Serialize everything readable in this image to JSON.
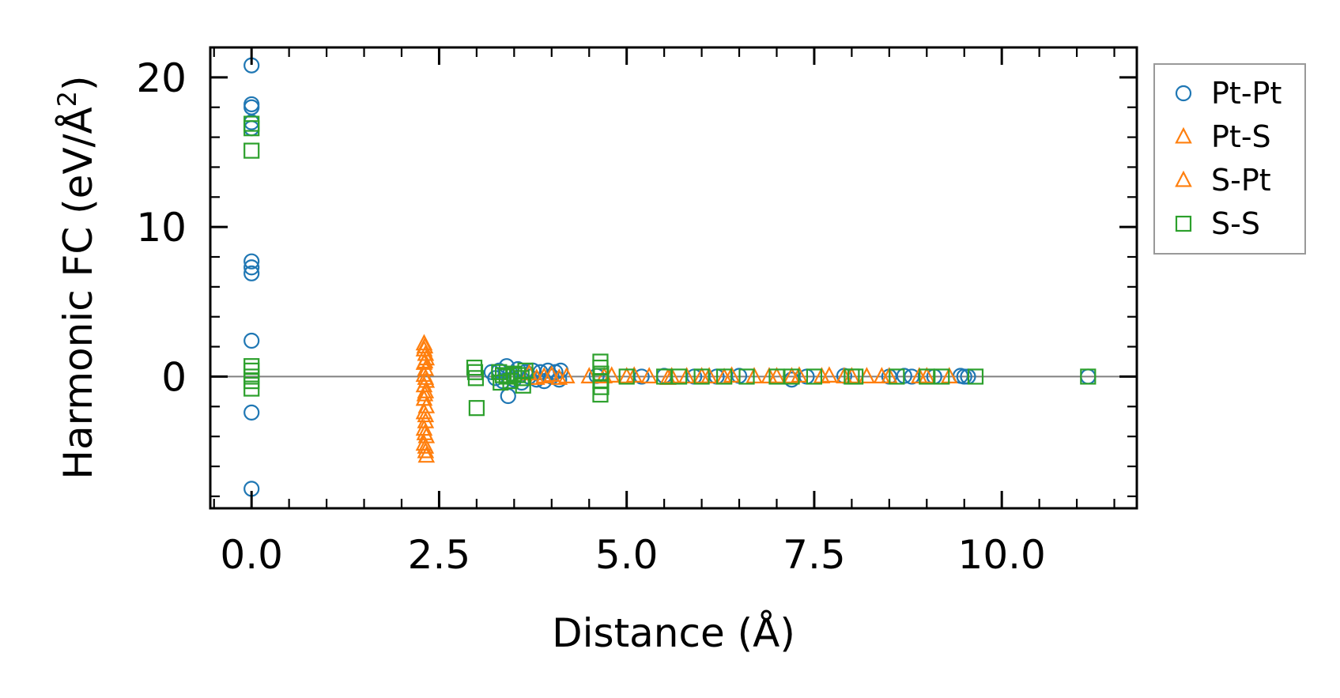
{
  "chart_data": {
    "type": "scatter",
    "xlabel": "Distance (Å)",
    "ylabel_main": "Harmonic FC (eV/Å",
    "ylabel_sup": "2",
    "ylabel_close": ")",
    "xlim": [
      -0.55,
      11.8
    ],
    "ylim": [
      -8.8,
      22.0
    ],
    "xticks": [
      0.0,
      2.5,
      5.0,
      7.5,
      10.0
    ],
    "xtick_labels": [
      "0.0",
      "2.5",
      "5.0",
      "7.5",
      "10.0"
    ],
    "yticks": [
      0,
      10,
      20
    ],
    "ytick_labels": [
      "0",
      "10",
      "20"
    ],
    "zero_line": true,
    "grid": false,
    "legend_position": "outside-right",
    "series": [
      {
        "name": "Pt-Pt",
        "marker": "circle",
        "color": "#1f77b4",
        "points": [
          [
            0,
            20.8
          ],
          [
            0,
            18.2
          ],
          [
            0,
            18.0
          ],
          [
            0,
            17.0
          ],
          [
            0,
            16.6
          ],
          [
            0,
            7.7
          ],
          [
            0,
            7.3
          ],
          [
            0,
            6.9
          ],
          [
            0,
            2.4
          ],
          [
            0,
            -2.4
          ],
          [
            0,
            -7.5
          ],
          [
            3.2,
            0.3
          ],
          [
            3.25,
            -0.1
          ],
          [
            3.3,
            0.4
          ],
          [
            3.35,
            -0.3
          ],
          [
            3.4,
            0.7
          ],
          [
            3.42,
            -1.3
          ],
          [
            3.45,
            0.2
          ],
          [
            3.5,
            -0.2
          ],
          [
            3.55,
            0.5
          ],
          [
            3.6,
            -0.4
          ],
          [
            3.65,
            0.3
          ],
          [
            3.7,
            0.0
          ],
          [
            3.75,
            0.4
          ],
          [
            3.8,
            -0.2
          ],
          [
            3.85,
            0.3
          ],
          [
            3.9,
            -0.3
          ],
          [
            3.95,
            0.4
          ],
          [
            4.0,
            0.0
          ],
          [
            4.05,
            0.3
          ],
          [
            4.1,
            -0.2
          ],
          [
            4.12,
            0.4
          ],
          [
            4.6,
            0.05
          ],
          [
            5.2,
            0.0
          ],
          [
            5.5,
            0.05
          ],
          [
            5.9,
            0.0
          ],
          [
            6.2,
            0.0
          ],
          [
            6.5,
            0.05
          ],
          [
            7.2,
            -0.2
          ],
          [
            7.4,
            0.0
          ],
          [
            7.9,
            0.05
          ],
          [
            8.5,
            0.0
          ],
          [
            8.7,
            0.05
          ],
          [
            8.8,
            0.0
          ],
          [
            9.1,
            0.0
          ],
          [
            9.45,
            0.05
          ],
          [
            9.5,
            0.0
          ],
          [
            9.55,
            0.0
          ],
          [
            11.15,
            0.0
          ]
        ]
      },
      {
        "name": "Pt-S",
        "marker": "triangle",
        "color": "#ff7f0e",
        "points": [
          [
            2.3,
            2.2
          ],
          [
            2.3,
            1.8
          ],
          [
            2.32,
            1.5
          ],
          [
            2.33,
            1.2
          ],
          [
            2.3,
            0.9
          ],
          [
            2.32,
            0.5
          ],
          [
            2.3,
            0.1
          ],
          [
            2.33,
            -0.3
          ],
          [
            2.3,
            -0.6
          ],
          [
            2.32,
            -1.0
          ],
          [
            2.3,
            -1.5
          ],
          [
            2.33,
            -2.0
          ],
          [
            2.3,
            -2.4
          ],
          [
            2.32,
            -3.0
          ],
          [
            2.3,
            -3.5
          ],
          [
            2.33,
            -4.0
          ],
          [
            2.3,
            -4.5
          ],
          [
            2.32,
            -5.0
          ],
          [
            2.33,
            -5.3
          ],
          [
            3.7,
            0.2
          ],
          [
            3.9,
            0.0
          ],
          [
            4.0,
            0.1
          ],
          [
            4.1,
            -0.1
          ],
          [
            4.5,
            0.0
          ],
          [
            4.8,
            0.05
          ],
          [
            5.0,
            0.0
          ],
          [
            5.3,
            0.0
          ],
          [
            5.55,
            -0.1
          ],
          [
            5.8,
            0.0
          ],
          [
            6.1,
            0.0
          ],
          [
            6.4,
            0.05
          ],
          [
            6.7,
            0.0
          ],
          [
            7.0,
            0.0
          ],
          [
            7.3,
            0.05
          ],
          [
            7.6,
            0.0
          ],
          [
            7.9,
            0.0
          ],
          [
            8.2,
            0.0
          ],
          [
            8.5,
            0.0
          ],
          [
            8.9,
            0.0
          ],
          [
            9.3,
            0.0
          ]
        ]
      },
      {
        "name": "S-Pt",
        "marker": "triangle",
        "color": "#ff7f0e",
        "points": [
          [
            2.31,
            2.0
          ],
          [
            2.31,
            1.0
          ],
          [
            2.32,
            -0.1
          ],
          [
            2.31,
            -1.2
          ],
          [
            2.32,
            -2.6
          ],
          [
            2.31,
            -3.8
          ],
          [
            2.32,
            -4.7
          ],
          [
            3.8,
            -0.1
          ],
          [
            4.2,
            0.0
          ],
          [
            4.7,
            0.0
          ],
          [
            5.1,
            0.05
          ],
          [
            5.6,
            0.0
          ],
          [
            6.0,
            0.0
          ],
          [
            6.3,
            -0.05
          ],
          [
            6.9,
            0.0
          ],
          [
            7.2,
            0.0
          ],
          [
            7.7,
            0.05
          ],
          [
            8.0,
            0.0
          ],
          [
            8.4,
            0.0
          ],
          [
            9.0,
            0.0
          ]
        ]
      },
      {
        "name": "S-S",
        "marker": "square",
        "color": "#2ca02c",
        "points": [
          [
            0,
            16.9
          ],
          [
            0,
            16.6
          ],
          [
            0,
            15.1
          ],
          [
            0,
            0.7
          ],
          [
            0,
            0.4
          ],
          [
            0,
            0.0
          ],
          [
            0,
            -0.3
          ],
          [
            0,
            -0.8
          ],
          [
            2.97,
            0.6
          ],
          [
            2.98,
            0.3
          ],
          [
            2.99,
            -0.1
          ],
          [
            3.0,
            -2.1
          ],
          [
            3.3,
            0.3
          ],
          [
            3.32,
            -0.4
          ],
          [
            3.35,
            0.1
          ],
          [
            3.4,
            0.0
          ],
          [
            3.45,
            -0.3
          ],
          [
            3.5,
            0.2
          ],
          [
            3.55,
            0.1
          ],
          [
            3.6,
            -0.1
          ],
          [
            3.62,
            -0.6
          ],
          [
            3.65,
            0.4
          ],
          [
            4.65,
            1.0
          ],
          [
            4.65,
            0.6
          ],
          [
            4.66,
            0.2
          ],
          [
            4.65,
            -0.3
          ],
          [
            4.66,
            -0.7
          ],
          [
            4.65,
            -1.2
          ],
          [
            5.0,
            0.0
          ],
          [
            5.5,
            0.0
          ],
          [
            5.7,
            0.0
          ],
          [
            6.0,
            0.0
          ],
          [
            6.3,
            0.0
          ],
          [
            6.6,
            0.0
          ],
          [
            7.0,
            0.0
          ],
          [
            7.2,
            0.0
          ],
          [
            7.5,
            0.0
          ],
          [
            8.0,
            0.0
          ],
          [
            8.05,
            0.0
          ],
          [
            8.6,
            0.0
          ],
          [
            9.0,
            0.0
          ],
          [
            9.2,
            0.0
          ],
          [
            9.65,
            0.0
          ],
          [
            11.15,
            0.0
          ]
        ]
      }
    ]
  }
}
